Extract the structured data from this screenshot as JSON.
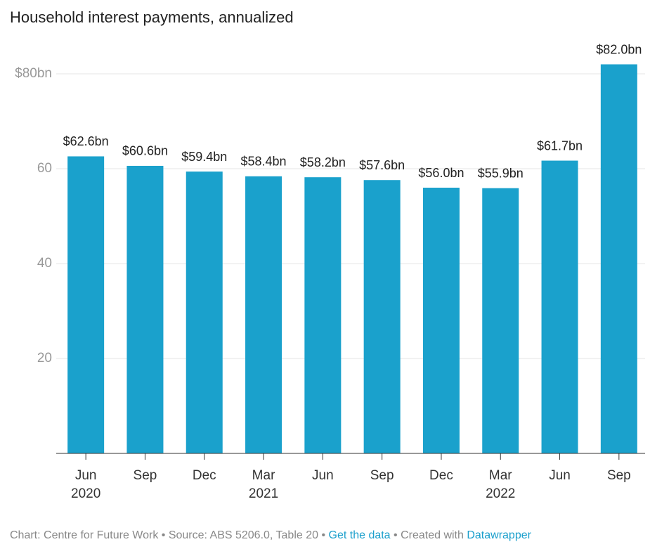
{
  "chart_data": {
    "type": "bar",
    "title": "Household interest payments, annualized",
    "categories": [
      "Jun",
      "Sep",
      "Dec",
      "Mar",
      "Jun",
      "Sep",
      "Dec",
      "Mar",
      "Jun",
      "Sep"
    ],
    "category_years": [
      "2020",
      null,
      null,
      "2021",
      null,
      null,
      null,
      "2022",
      null,
      null
    ],
    "values": [
      62.6,
      60.6,
      59.4,
      58.4,
      58.2,
      57.6,
      56.0,
      55.9,
      61.7,
      82.0
    ],
    "value_labels": [
      "$62.6bn",
      "$60.6bn",
      "$59.4bn",
      "$58.4bn",
      "$58.2bn",
      "$57.6bn",
      "$56.0bn",
      "$55.9bn",
      "$61.7bn",
      "$82.0bn"
    ],
    "color": "#1aa1cc",
    "ylim": [
      0,
      82
    ],
    "yticks": [
      20,
      40,
      60,
      {
        "value": 80,
        "label": "$80bn"
      }
    ],
    "grid": true,
    "footer": [
      "Chart: Centre for Future Work • Source: ABS 5206.0, Table 20 • ",
      "Get the data",
      " • Created with ",
      "Datawrapper"
    ]
  }
}
